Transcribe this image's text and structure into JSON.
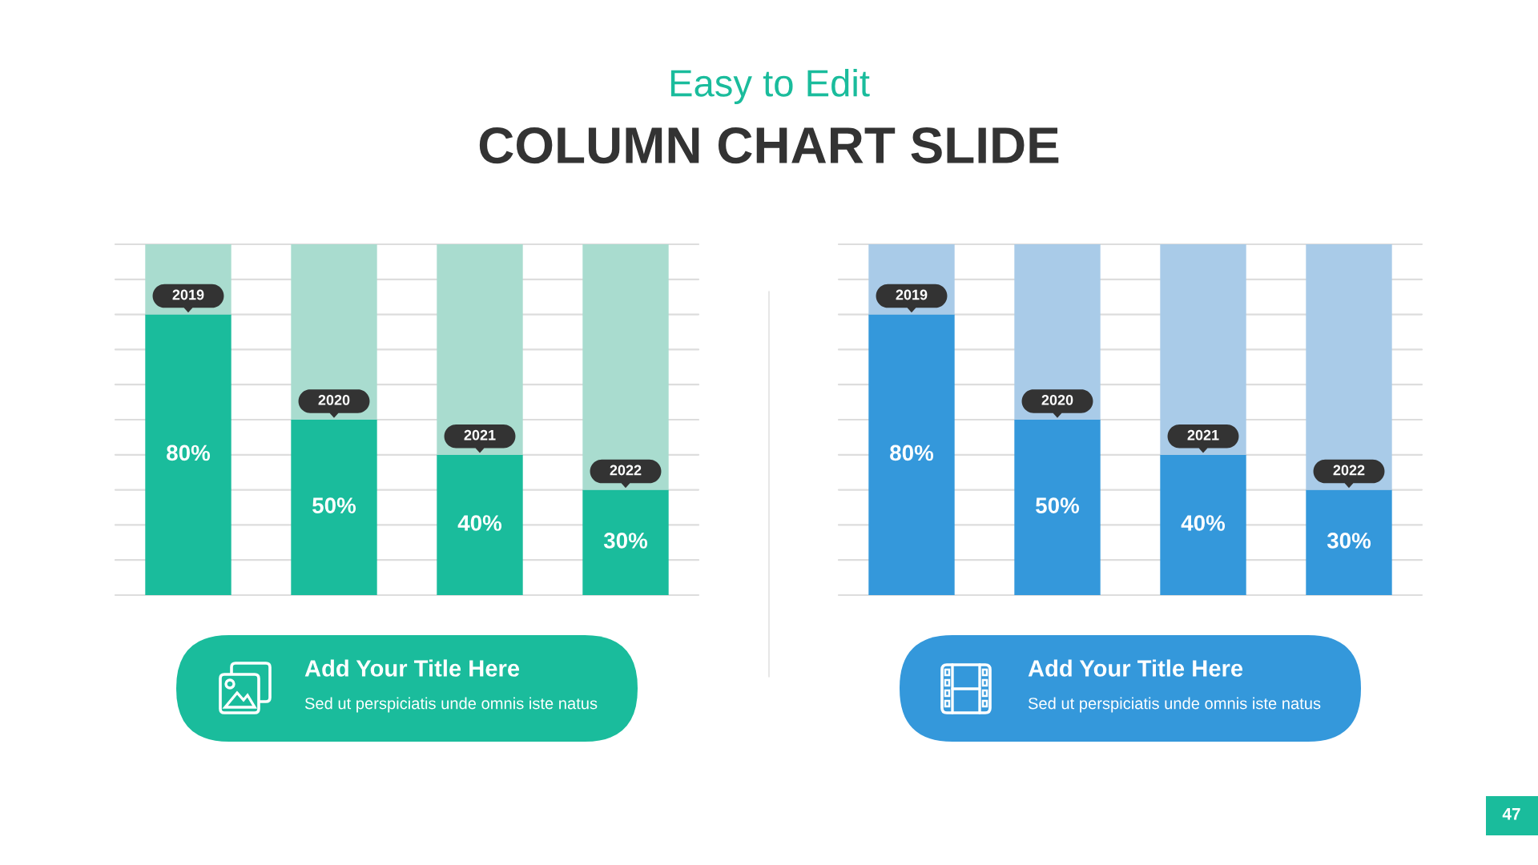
{
  "chart_data": [
    {
      "type": "other",
      "title": "COLUMN CHART SLIDE",
      "subtitle": "Easy to Edit",
      "annotations": [
        "47"
      ]
    },
    {
      "type": "bar",
      "title": "Add Your Title Here",
      "subtitle": "Sed ut perspiciatis unde omnis iste natus",
      "categories": [
        "2019",
        "2020",
        "2021",
        "2022"
      ],
      "stacked": true,
      "series": [
        {
          "color": "#1abc9c",
          "values": [
            80,
            50,
            40,
            30
          ],
          "value_labels": [
            "80%",
            "50%",
            "40%",
            "30%"
          ]
        },
        {
          "color": "#a9dccf",
          "values": [
            20,
            50,
            60,
            70
          ]
        }
      ],
      "ylim": [
        0,
        100
      ],
      "yticks": [
        {
          "value": 0,
          "label": null
        },
        {
          "value": 10,
          "label": null
        },
        {
          "value": 20,
          "label": null
        },
        {
          "value": 30,
          "label": null
        },
        {
          "value": 40,
          "label": null
        },
        {
          "value": 50,
          "label": null
        },
        {
          "value": 60,
          "label": null
        },
        {
          "value": 70,
          "label": null
        },
        {
          "value": 80,
          "label": null
        },
        {
          "value": 90,
          "label": null
        },
        {
          "value": 100,
          "label": null
        }
      ],
      "grid": "y",
      "tick_labels": "x"
    },
    {
      "type": "bar",
      "title": "Add Your Title Here",
      "subtitle": "Sed ut perspiciatis unde omnis iste natus",
      "categories": [
        "2019",
        "2020",
        "2021",
        "2022"
      ],
      "stacked": true,
      "series": [
        {
          "color": "#3498db",
          "values": [
            80,
            50,
            40,
            30
          ],
          "value_labels": [
            "80%",
            "50%",
            "40%",
            "30%"
          ]
        },
        {
          "color": "#a9cbe8",
          "values": [
            20,
            50,
            60,
            70
          ]
        }
      ],
      "ylim": [
        0,
        100
      ],
      "yticks": [
        {
          "value": 0,
          "label": null
        },
        {
          "value": 10,
          "label": null
        },
        {
          "value": 20,
          "label": null
        },
        {
          "value": 30,
          "label": null
        },
        {
          "value": 40,
          "label": null
        },
        {
          "value": 50,
          "label": null
        },
        {
          "value": 60,
          "label": null
        },
        {
          "value": 70,
          "label": null
        },
        {
          "value": 80,
          "label": null
        },
        {
          "value": 90,
          "label": null
        },
        {
          "value": 100,
          "label": null
        }
      ],
      "grid": "y",
      "tick_labels": "x"
    }
  ]
}
